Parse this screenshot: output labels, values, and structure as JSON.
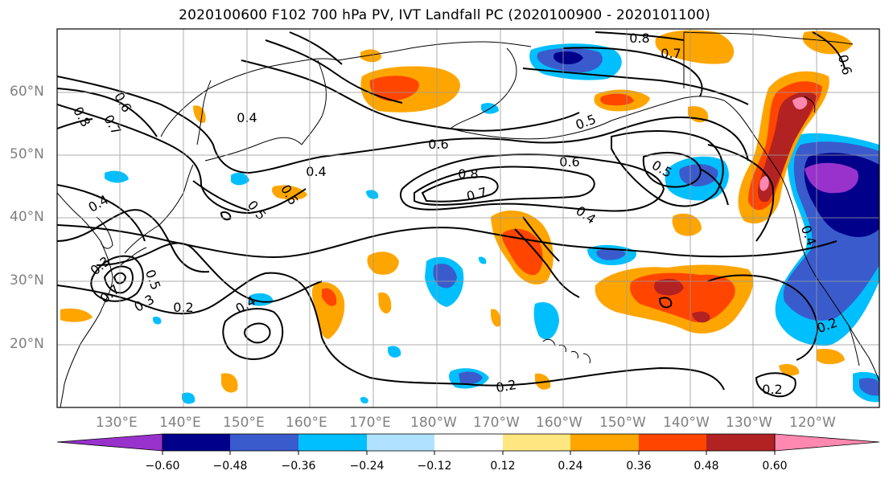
{
  "title": "2020100600 F102 700 hPa PV, IVT Landfall PC (2020100900 - 2020101100)",
  "map": {
    "projection": "plate-carree",
    "lon_range": [
      "120°E",
      "115°W"
    ],
    "lat_range": [
      "10°N",
      "70°N"
    ],
    "grid": true,
    "lat_labels": [
      "60°N",
      "50°N",
      "40°N",
      "30°N",
      "20°N"
    ],
    "lon_labels": [
      "130°E",
      "140°E",
      "150°E",
      "160°E",
      "170°E",
      "180°W",
      "170°W",
      "160°W",
      "150°W",
      "140°W",
      "130°W",
      "120°W"
    ],
    "contour_labels": [
      "0.8",
      "0.7",
      "0.6",
      "0.7",
      "0.8",
      "0.6",
      "0.4",
      "0.6",
      "0.8",
      "0.7",
      "0.6",
      "0.5",
      "0.4",
      "0.5",
      "0.6",
      "0.5",
      "0.4",
      "0.4",
      "0.3",
      "0.2",
      "0.4",
      "0.2",
      "0.2",
      "0.2",
      "0.4",
      "0.3",
      "0.5",
      "0.7"
    ]
  },
  "colorbar": {
    "extend": "both",
    "ticks": [
      "−0.60",
      "−0.48",
      "−0.36",
      "−0.24",
      "−0.12",
      "0.12",
      "0.24",
      "0.36",
      "0.48",
      "0.60"
    ],
    "colors": [
      "#9932cc",
      "#00008b",
      "#3a5bcc",
      "#00bfff",
      "#b0e2ff",
      "#ffffff",
      "#ffe680",
      "#ffa500",
      "#ff4500",
      "#b22222",
      "#ff88b0"
    ]
  }
}
